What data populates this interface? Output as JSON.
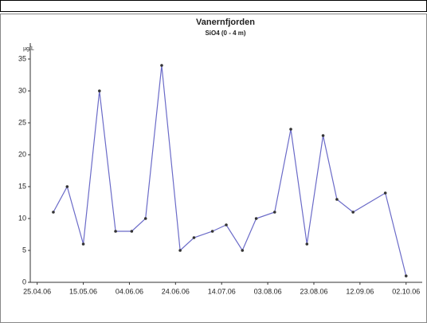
{
  "chart_data": {
    "type": "line",
    "title": "Vanernfjorden",
    "subtitle": "SiO4 (0 - 4 m)",
    "y_label": "µg/L",
    "x": [
      "2006-05-02",
      "2006-05-08",
      "2006-05-15",
      "2006-05-22",
      "2006-05-29",
      "2006-06-05",
      "2006-06-11",
      "2006-06-18",
      "2006-06-26",
      "2006-07-02",
      "2006-07-10",
      "2006-07-16",
      "2006-07-23",
      "2006-07-29",
      "2006-08-06",
      "2006-08-13",
      "2006-08-20",
      "2006-08-27",
      "2006-09-02",
      "2006-09-09",
      "2006-09-23",
      "2006-10-02"
    ],
    "series": [
      {
        "name": "SiO4",
        "color": "#6b6bc8",
        "values": [
          11,
          15,
          6,
          30,
          8,
          8,
          10,
          34,
          5,
          7,
          8,
          9,
          5,
          10,
          11,
          24,
          6,
          23,
          13,
          11,
          14,
          1
        ]
      }
    ],
    "xlim": [
      "2006-04-22",
      "2006-10-09"
    ],
    "xticks": [
      {
        "value": "2006-04-25",
        "label": "25.04.06"
      },
      {
        "value": "2006-05-15",
        "label": "15.05.06"
      },
      {
        "value": "2006-06-04",
        "label": "04.06.06"
      },
      {
        "value": "2006-06-24",
        "label": "24.06.06"
      },
      {
        "value": "2006-07-14",
        "label": "14.07.06"
      },
      {
        "value": "2006-08-03",
        "label": "03.08.06"
      },
      {
        "value": "2006-08-23",
        "label": "23.08.06"
      },
      {
        "value": "2006-09-12",
        "label": "12.09.06"
      },
      {
        "value": "2006-10-02",
        "label": "02.10.06"
      }
    ],
    "ylim": [
      0,
      37.5
    ],
    "yticks": [
      0,
      5,
      10,
      15,
      20,
      25,
      30,
      35
    ]
  }
}
